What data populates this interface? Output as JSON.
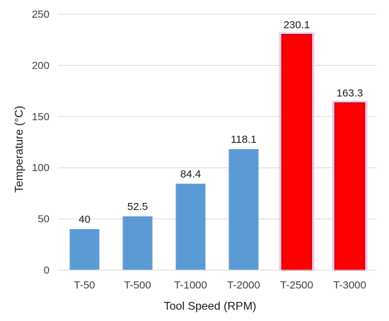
{
  "chart_data": {
    "type": "bar",
    "title": "",
    "xlabel": "Tool Speed (RPM)",
    "ylabel": "Temperature (°C)",
    "categories": [
      "T-50",
      "T-500",
      "T-1000",
      "T-2000",
      "T-2500",
      "T-3000"
    ],
    "values": [
      40,
      52.5,
      84.4,
      118.1,
      230.1,
      163.3
    ],
    "data_labels": [
      "40",
      "52.5",
      "84.4",
      "118.1",
      "230.1",
      "163.3"
    ],
    "bar_colors": [
      "#5b9bd5",
      "#5b9bd5",
      "#5b9bd5",
      "#5b9bd5",
      "#ff0000",
      "#ff0000"
    ],
    "highlight_color": "#f4c7ec",
    "ylim": [
      0,
      250
    ],
    "yticks": [
      "0",
      "50",
      "100",
      "150",
      "200",
      "250"
    ],
    "grid": true,
    "legend": "none"
  }
}
